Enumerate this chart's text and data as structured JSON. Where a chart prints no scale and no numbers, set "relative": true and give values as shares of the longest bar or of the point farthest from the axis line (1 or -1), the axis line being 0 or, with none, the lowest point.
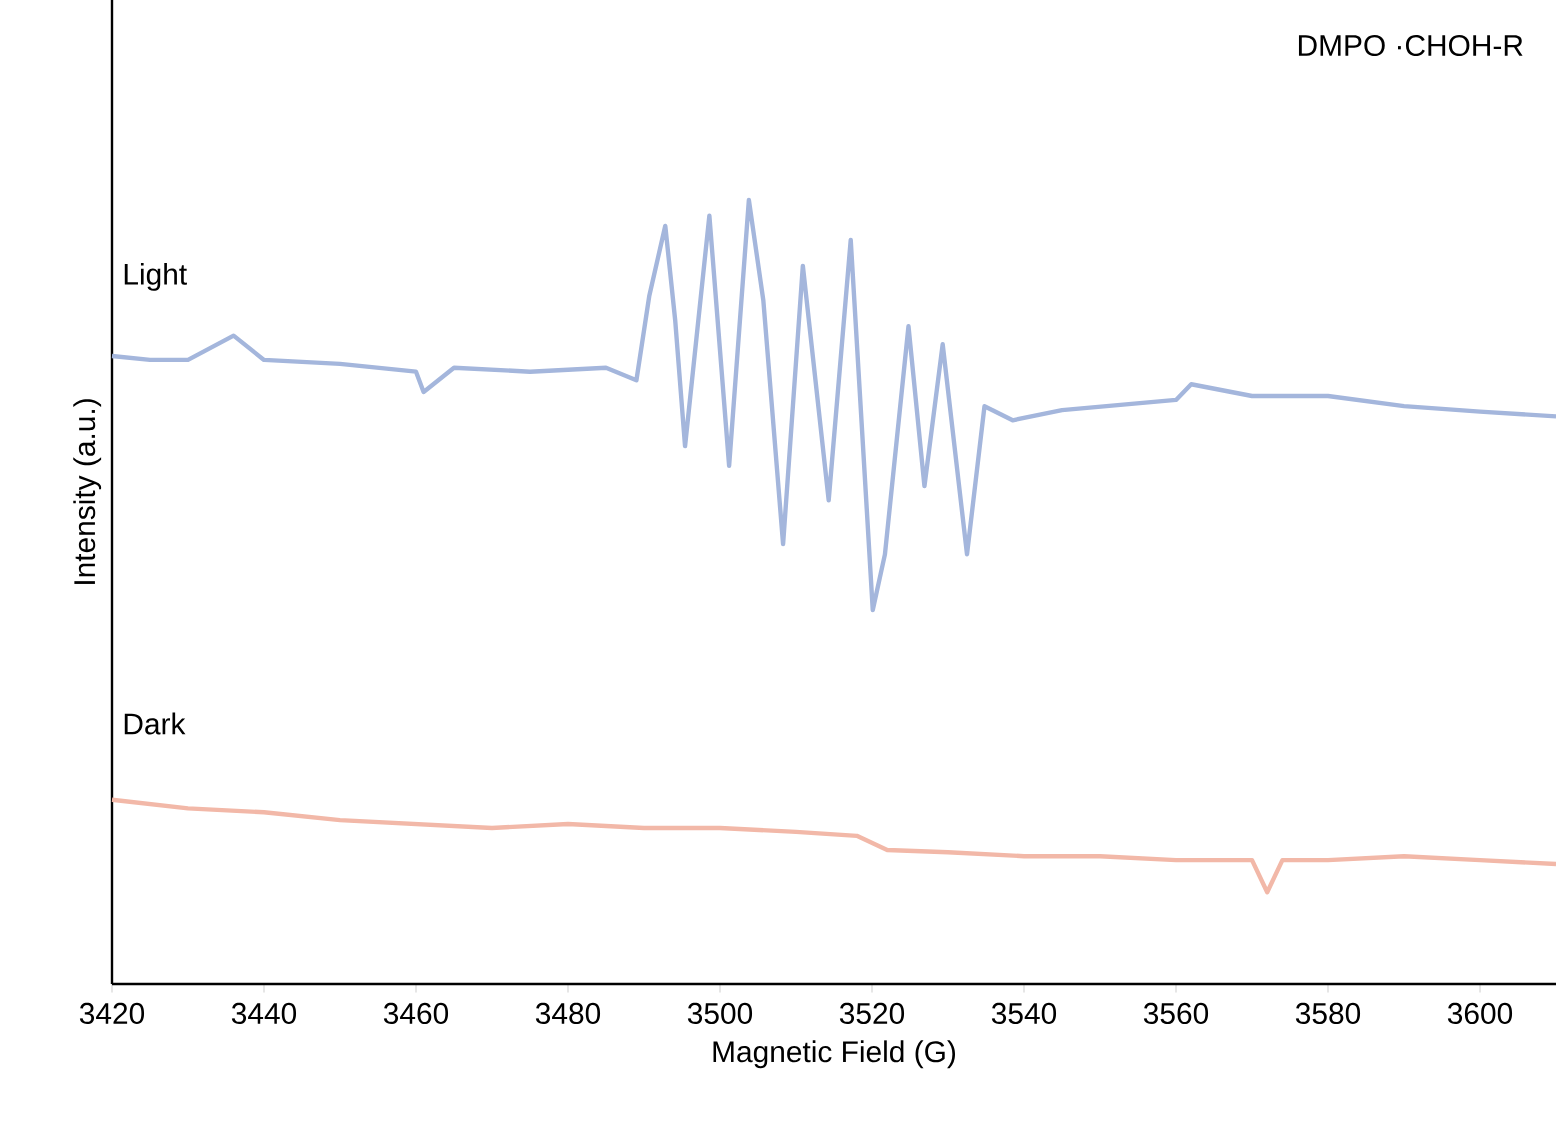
{
  "chart_data": {
    "type": "line",
    "xlabel": "Magnetic Field (G)",
    "ylabel": "Intensity (a.u.)",
    "relative": true,
    "legend": false,
    "grid": false,
    "marker": "none",
    "line_style": "solid",
    "annotations": [
      "DMPO  ·CHOH-R"
    ],
    "xlim": [
      3420,
      3610
    ],
    "xticks": [
      3420,
      3440,
      3460,
      3480,
      3500,
      3520,
      3540,
      3560,
      3580,
      3600
    ],
    "series": [
      {
        "name": "Light",
        "color": "#a4b6dc",
        "x": [
          3420,
          3425,
          3430,
          3436,
          3440,
          3450,
          3460,
          3461,
          3465,
          3475,
          3485,
          3489,
          3490.7,
          3492.8,
          3494.1,
          3495.4,
          3498.6,
          3501.2,
          3503.8,
          3505.7,
          3508.3,
          3510.9,
          3514.3,
          3517.2,
          3520.1,
          3521.7,
          3524.8,
          3526.9,
          3529.3,
          3532.5,
          3534.8,
          3538.5,
          3545,
          3560,
          3562,
          3570,
          3580,
          3590,
          3600,
          3610
        ],
        "values": [
          0.801,
          0.796,
          0.796,
          0.827,
          0.796,
          0.791,
          0.781,
          0.755,
          0.786,
          0.781,
          0.786,
          0.77,
          0.878,
          0.967,
          0.847,
          0.686,
          0.98,
          0.661,
          1.0,
          0.872,
          0.561,
          0.916,
          0.617,
          0.949,
          0.477,
          0.548,
          0.839,
          0.635,
          0.816,
          0.548,
          0.737,
          0.719,
          0.732,
          0.745,
          0.765,
          0.75,
          0.75,
          0.737,
          0.73,
          0.724
        ]
      },
      {
        "name": "Dark",
        "color": "#f2b8a8",
        "x": [
          3420,
          3430,
          3440,
          3450,
          3460,
          3470,
          3480,
          3490,
          3500,
          3510,
          3518,
          3522,
          3530,
          3540,
          3550,
          3560,
          3570,
          3572,
          3574,
          3580,
          3590,
          3600,
          3610
        ],
        "values": [
          0.235,
          0.224,
          0.219,
          0.209,
          0.204,
          0.199,
          0.204,
          0.199,
          0.199,
          0.194,
          0.189,
          0.171,
          0.168,
          0.163,
          0.163,
          0.158,
          0.158,
          0.117,
          0.158,
          0.158,
          0.163,
          0.158,
          0.153
        ]
      }
    ]
  }
}
